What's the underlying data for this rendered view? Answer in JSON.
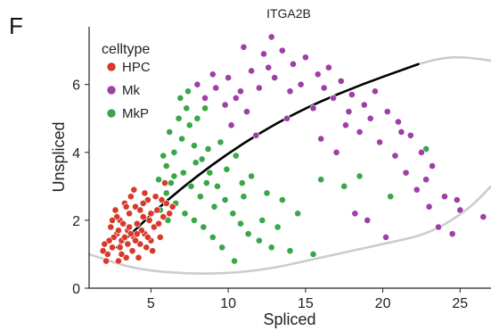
{
  "panel_label": "F",
  "chart_data": {
    "type": "scatter",
    "title": "ITGA2B",
    "xlabel": "Spliced",
    "ylabel": "Unspliced",
    "xlim": [
      1.0,
      27.0
    ],
    "ylim": [
      0.0,
      7.7
    ],
    "xticks": [
      5,
      10,
      15,
      20,
      25
    ],
    "yticks": [
      0,
      2,
      4,
      6
    ],
    "grid": false,
    "legend": {
      "title": "celltype",
      "position": "top-left"
    },
    "series": [
      {
        "name": "HPC",
        "color": "#d63a2a",
        "points": [
          [
            2.8,
            1.6
          ],
          [
            3.1,
            1.4
          ],
          [
            3.5,
            1.7
          ],
          [
            3.9,
            1.5
          ],
          [
            4.3,
            1.3
          ],
          [
            2.5,
            1.2
          ],
          [
            2.2,
            1.0
          ],
          [
            3.0,
            2.0
          ],
          [
            3.6,
            2.2
          ],
          [
            4.1,
            1.9
          ],
          [
            4.6,
            1.6
          ],
          [
            5.0,
            1.4
          ],
          [
            2.7,
            2.3
          ],
          [
            3.3,
            2.5
          ],
          [
            4.0,
            2.4
          ],
          [
            4.5,
            2.1
          ],
          [
            5.2,
            1.8
          ],
          [
            2.4,
            1.8
          ],
          [
            1.9,
            1.1
          ],
          [
            3.8,
            1.1
          ],
          [
            4.8,
            2.6
          ],
          [
            5.4,
            2.3
          ],
          [
            3.4,
            0.9
          ],
          [
            2.9,
            0.8
          ],
          [
            4.2,
            0.9
          ],
          [
            5.6,
            1.5
          ],
          [
            3.2,
            1.9
          ],
          [
            4.4,
            1.7
          ],
          [
            3.7,
            2.7
          ],
          [
            2.6,
            1.5
          ],
          [
            4.9,
            2.0
          ],
          [
            5.8,
            2.1
          ],
          [
            3.0,
            1.2
          ],
          [
            4.0,
            1.4
          ],
          [
            2.3,
            1.4
          ],
          [
            3.5,
            1.3
          ],
          [
            4.7,
            1.2
          ],
          [
            2.1,
            0.8
          ],
          [
            5.3,
            2.7
          ],
          [
            6.0,
            2.5
          ],
          [
            3.9,
            2.9
          ],
          [
            4.3,
            2.3
          ],
          [
            2.8,
            2.1
          ],
          [
            3.6,
            1.8
          ],
          [
            5.1,
            1.1
          ],
          [
            2.0,
            1.3
          ],
          [
            4.6,
            2.8
          ],
          [
            3.3,
            1.5
          ],
          [
            5.5,
            1.9
          ],
          [
            4.1,
            1.6
          ],
          [
            6.2,
            2.2
          ],
          [
            3.1,
            1.0
          ],
          [
            2.5,
            2.0
          ],
          [
            4.8,
            1.5
          ],
          [
            3.7,
            1.6
          ],
          [
            5.7,
            2.6
          ],
          [
            3.4,
            2.4
          ],
          [
            2.9,
            1.7
          ],
          [
            4.5,
            2.5
          ],
          [
            5.0,
            2.2
          ],
          [
            5.9,
            3.1
          ],
          [
            6.4,
            2.4
          ]
        ]
      },
      {
        "name": "Mk",
        "color": "#9e3fa6",
        "points": [
          [
            8.5,
            5.6
          ],
          [
            9.2,
            5.9
          ],
          [
            10.0,
            6.2
          ],
          [
            10.8,
            5.8
          ],
          [
            11.5,
            6.4
          ],
          [
            12.3,
            6.9
          ],
          [
            12.8,
            7.4
          ],
          [
            13.5,
            7.0
          ],
          [
            14.2,
            6.6
          ],
          [
            15.0,
            6.8
          ],
          [
            15.8,
            6.3
          ],
          [
            16.5,
            6.5
          ],
          [
            17.3,
            6.1
          ],
          [
            18.0,
            5.7
          ],
          [
            18.8,
            5.4
          ],
          [
            19.5,
            5.8
          ],
          [
            20.3,
            5.2
          ],
          [
            21.0,
            4.9
          ],
          [
            21.8,
            4.5
          ],
          [
            22.5,
            4.0
          ],
          [
            23.2,
            3.6
          ],
          [
            24.0,
            2.7
          ],
          [
            25.0,
            2.3
          ],
          [
            26.5,
            2.1
          ],
          [
            9.8,
            5.4
          ],
          [
            10.5,
            5.6
          ],
          [
            11.2,
            5.2
          ],
          [
            12.0,
            5.9
          ],
          [
            13.0,
            6.2
          ],
          [
            14.0,
            5.8
          ],
          [
            15.5,
            5.3
          ],
          [
            16.8,
            5.6
          ],
          [
            17.6,
            4.8
          ],
          [
            18.5,
            4.6
          ],
          [
            19.8,
            4.3
          ],
          [
            20.8,
            3.9
          ],
          [
            21.5,
            3.4
          ],
          [
            22.2,
            2.9
          ],
          [
            23.0,
            2.4
          ],
          [
            23.6,
            1.8
          ],
          [
            24.5,
            1.6
          ],
          [
            19.0,
            2.0
          ],
          [
            20.2,
            1.5
          ],
          [
            18.2,
            2.2
          ],
          [
            10.2,
            4.8
          ],
          [
            11.8,
            4.5
          ],
          [
            13.8,
            5.0
          ],
          [
            16.0,
            4.4
          ],
          [
            17.0,
            4.0
          ],
          [
            9.0,
            6.3
          ],
          [
            8.0,
            6.0
          ],
          [
            11.0,
            7.1
          ],
          [
            12.6,
            6.5
          ],
          [
            14.7,
            6.0
          ],
          [
            16.2,
            5.9
          ],
          [
            17.8,
            5.2
          ],
          [
            19.2,
            5.0
          ],
          [
            21.2,
            4.6
          ],
          [
            22.8,
            3.2
          ],
          [
            24.8,
            2.6
          ]
        ]
      },
      {
        "name": "MkP",
        "color": "#3aa64a",
        "points": [
          [
            5.5,
            3.2
          ],
          [
            6.0,
            3.6
          ],
          [
            6.5,
            4.0
          ],
          [
            7.0,
            4.4
          ],
          [
            7.5,
            4.8
          ],
          [
            8.0,
            5.0
          ],
          [
            8.5,
            5.3
          ],
          [
            6.2,
            4.6
          ],
          [
            6.8,
            5.0
          ],
          [
            7.3,
            5.3
          ],
          [
            7.8,
            4.2
          ],
          [
            8.3,
            3.8
          ],
          [
            8.8,
            3.4
          ],
          [
            9.3,
            3.0
          ],
          [
            9.8,
            2.6
          ],
          [
            10.3,
            2.2
          ],
          [
            10.8,
            1.9
          ],
          [
            11.3,
            1.6
          ],
          [
            12.0,
            1.4
          ],
          [
            12.8,
            1.2
          ],
          [
            14.0,
            1.1
          ],
          [
            15.5,
            1.0
          ],
          [
            6.0,
            2.8
          ],
          [
            6.6,
            2.5
          ],
          [
            7.2,
            2.2
          ],
          [
            7.8,
            2.0
          ],
          [
            8.4,
            1.8
          ],
          [
            9.0,
            1.5
          ],
          [
            9.6,
            1.2
          ],
          [
            10.4,
            0.8
          ],
          [
            6.3,
            3.1
          ],
          [
            7.1,
            3.4
          ],
          [
            7.9,
            3.7
          ],
          [
            8.7,
            4.1
          ],
          [
            9.5,
            4.3
          ],
          [
            10.5,
            3.9
          ],
          [
            11.5,
            3.3
          ],
          [
            12.5,
            2.8
          ],
          [
            13.5,
            2.6
          ],
          [
            14.5,
            2.2
          ],
          [
            16.0,
            3.2
          ],
          [
            17.5,
            3.0
          ],
          [
            18.5,
            3.3
          ],
          [
            20.5,
            2.7
          ],
          [
            22.8,
            4.1
          ],
          [
            5.8,
            3.9
          ],
          [
            6.5,
            3.3
          ],
          [
            7.6,
            3.0
          ],
          [
            8.2,
            2.7
          ],
          [
            9.1,
            2.4
          ],
          [
            11.0,
            2.7
          ],
          [
            12.2,
            2.0
          ],
          [
            13.2,
            1.8
          ],
          [
            6.9,
            5.6
          ],
          [
            7.4,
            5.8
          ],
          [
            5.6,
            2.3
          ],
          [
            6.1,
            2.0
          ],
          [
            8.6,
            3.1
          ],
          [
            9.9,
            3.5
          ],
          [
            10.9,
            3.1
          ]
        ]
      }
    ],
    "fits": [
      {
        "color": "#000000",
        "description_none": "",
        "points": [
          [
            2.8,
            1.2
          ],
          [
            6.0,
            2.6
          ],
          [
            10.0,
            4.0
          ],
          [
            14.0,
            5.1
          ],
          [
            18.0,
            5.9
          ],
          [
            22.3,
            6.6
          ]
        ]
      },
      {
        "color": "#cccccc",
        "points": [
          [
            1.0,
            1.0
          ],
          [
            4.0,
            0.55
          ],
          [
            8.0,
            0.4
          ],
          [
            12.0,
            0.5
          ],
          [
            16.0,
            0.9
          ],
          [
            20.0,
            1.3
          ],
          [
            23.0,
            1.6
          ],
          [
            25.5,
            2.3
          ],
          [
            27.0,
            3.0
          ]
        ]
      },
      {
        "color": "#cccccc",
        "points": [
          [
            22.3,
            6.6
          ],
          [
            24.0,
            6.8
          ],
          [
            25.5,
            6.8
          ],
          [
            27.0,
            6.7
          ]
        ]
      }
    ]
  }
}
